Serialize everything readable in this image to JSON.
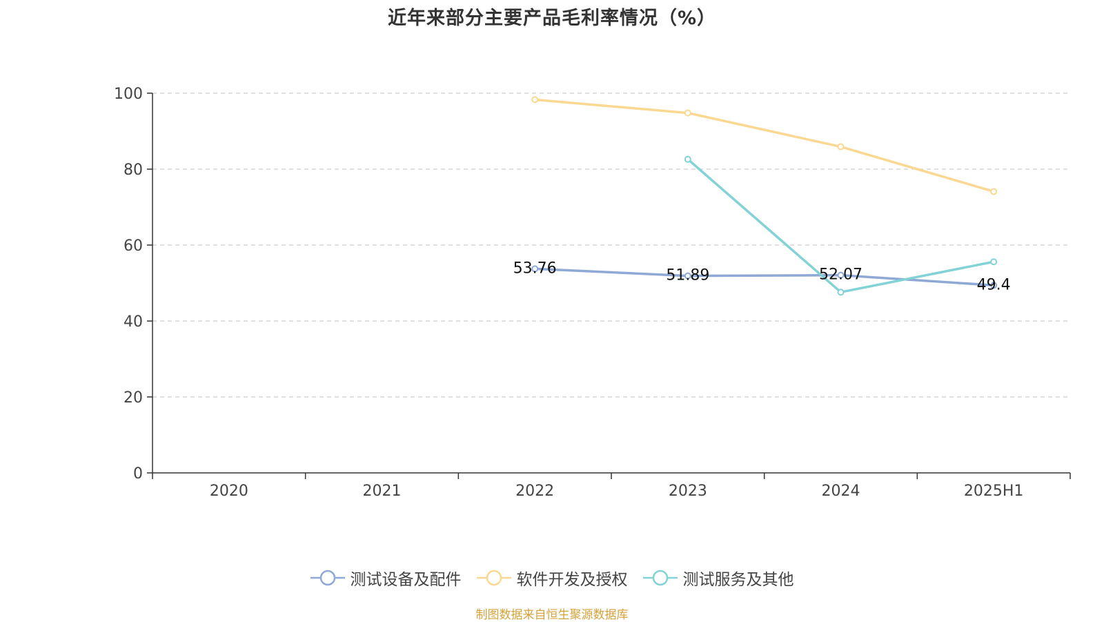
{
  "chart_data": {
    "type": "line",
    "title": "近年来部分主要产品毛利率情况（%）",
    "categories": [
      "2020",
      "2021",
      "2022",
      "2023",
      "2024",
      "2025H1"
    ],
    "ylim": [
      0,
      100
    ],
    "yticks": [
      0,
      20,
      40,
      60,
      80,
      100
    ],
    "grid": true,
    "legend_position": "bottom",
    "series": [
      {
        "name": "测试设备及配件",
        "color": "#8fa9d6",
        "values": [
          null,
          null,
          53.76,
          51.89,
          52.07,
          49.4
        ],
        "show_labels": true
      },
      {
        "name": "软件开发及授权",
        "color": "#fbd892",
        "values": [
          null,
          null,
          98.3,
          94.8,
          85.9,
          74.1
        ],
        "show_labels": false
      },
      {
        "name": "测试服务及其他",
        "color": "#82d2d6",
        "values": [
          null,
          null,
          null,
          82.6,
          47.6,
          55.6
        ],
        "show_labels": false
      }
    ]
  },
  "source_note": "制图数据来自恒生聚源数据库",
  "colors": {
    "axis": "#333333",
    "grid": "#cccccc",
    "source_note": "#d6a23a",
    "title": "#333333"
  }
}
